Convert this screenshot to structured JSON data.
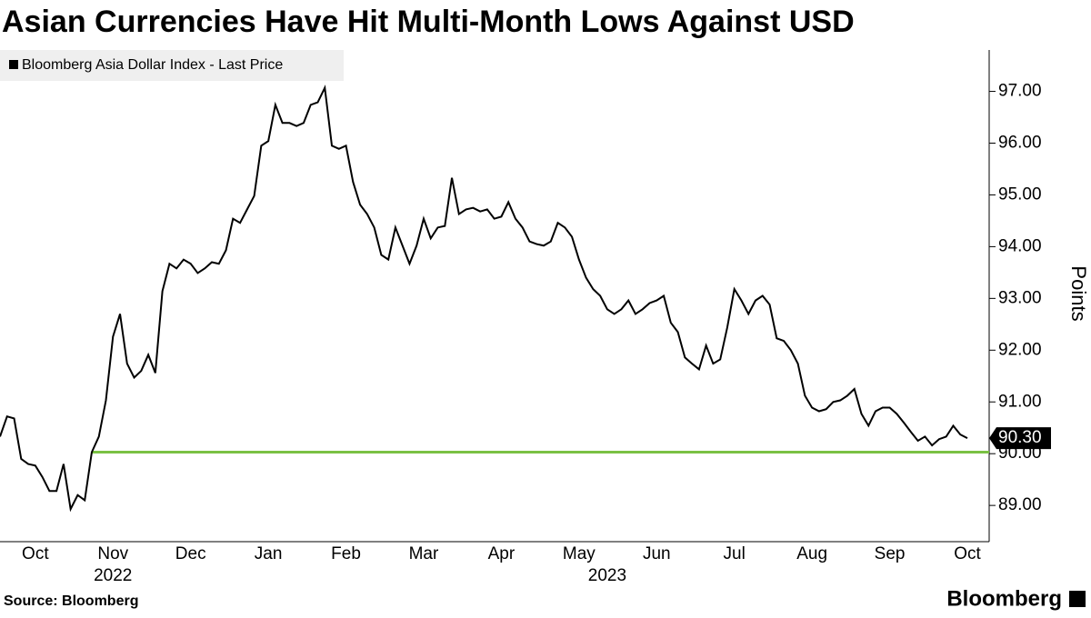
{
  "chart_data": {
    "type": "line",
    "title": "Asian Currencies Have Hit Multi-Month Lows Against USD",
    "series": [
      {
        "name": "Bloomberg Asia Dollar Index - Last Price",
        "color": "#000000",
        "values": [
          90.33,
          90.72,
          90.68,
          89.9,
          89.8,
          89.77,
          89.55,
          89.28,
          89.28,
          89.8,
          88.93,
          89.2,
          89.1,
          90.03,
          90.33,
          91.03,
          92.26,
          92.7,
          91.74,
          91.47,
          91.6,
          91.91,
          91.56,
          93.14,
          93.67,
          93.58,
          93.75,
          93.67,
          93.49,
          93.58,
          93.7,
          93.67,
          93.93,
          94.54,
          94.46,
          94.72,
          94.98,
          95.95,
          96.04,
          96.74,
          96.39,
          96.39,
          96.33,
          96.39,
          96.74,
          96.79,
          97.07,
          95.95,
          95.89,
          95.95,
          95.25,
          94.81,
          94.63,
          94.37,
          93.84,
          93.75,
          94.37,
          94.02,
          93.67,
          94.02,
          94.54,
          94.16,
          94.37,
          94.4,
          95.33,
          94.63,
          94.72,
          94.75,
          94.68,
          94.72,
          94.54,
          94.58,
          94.86,
          94.54,
          94.37,
          94.1,
          94.05,
          94.02,
          94.1,
          94.46,
          94.37,
          94.19,
          93.75,
          93.4,
          93.18,
          93.05,
          92.79,
          92.7,
          92.79,
          92.96,
          92.7,
          92.79,
          92.91,
          92.96,
          93.05,
          92.53,
          92.35,
          91.86,
          91.74,
          91.63,
          92.09,
          91.74,
          91.82,
          92.44,
          93.18,
          92.96,
          92.7,
          92.96,
          93.05,
          92.88,
          92.23,
          92.18,
          92.0,
          91.74,
          91.12,
          90.89,
          90.82,
          90.86,
          91.0,
          91.03,
          91.12,
          91.25,
          90.77,
          90.54,
          90.82,
          90.89,
          90.89,
          90.77,
          90.6,
          90.42,
          90.25,
          90.33,
          90.16,
          90.28,
          90.33,
          90.54,
          90.37,
          90.3
        ],
        "last_value_label": "90.30"
      }
    ],
    "xlim": [
      0,
      137
    ],
    "xticks": [
      {
        "value": 5,
        "label": "Oct"
      },
      {
        "value": 16,
        "label": "Nov"
      },
      {
        "value": 27,
        "label": "Dec"
      },
      {
        "value": 38,
        "label": "Jan"
      },
      {
        "value": 49,
        "label": "Feb"
      },
      {
        "value": 60,
        "label": "Mar"
      },
      {
        "value": 71,
        "label": "Apr"
      },
      {
        "value": 82,
        "label": "May"
      },
      {
        "value": 93,
        "label": "Jun"
      },
      {
        "value": 104,
        "label": "Jul"
      },
      {
        "value": 115,
        "label": "Aug"
      },
      {
        "value": 126,
        "label": "Sep"
      },
      {
        "value": 137,
        "label": "Oct"
      }
    ],
    "year_labels": [
      {
        "value": 16,
        "label": "2022"
      },
      {
        "value": 86,
        "label": "2023"
      }
    ],
    "ylim": [
      88.3,
      97.8
    ],
    "yticks": [
      {
        "value": 89,
        "label": "89.00"
      },
      {
        "value": 90,
        "label": "90.00"
      },
      {
        "value": 91,
        "label": "91.00"
      },
      {
        "value": 92,
        "label": "92.00"
      },
      {
        "value": 93,
        "label": "93.00"
      },
      {
        "value": 94,
        "label": "94.00"
      },
      {
        "value": 95,
        "label": "95.00"
      },
      {
        "value": 96,
        "label": "96.00"
      },
      {
        "value": 97,
        "label": "97.00"
      }
    ],
    "y_axis_label": "Points",
    "reference_line": {
      "value": 90.03,
      "from_x": 13,
      "color": "#7ac143"
    },
    "source": "Source: Bloomberg",
    "brand": "Bloomberg"
  }
}
